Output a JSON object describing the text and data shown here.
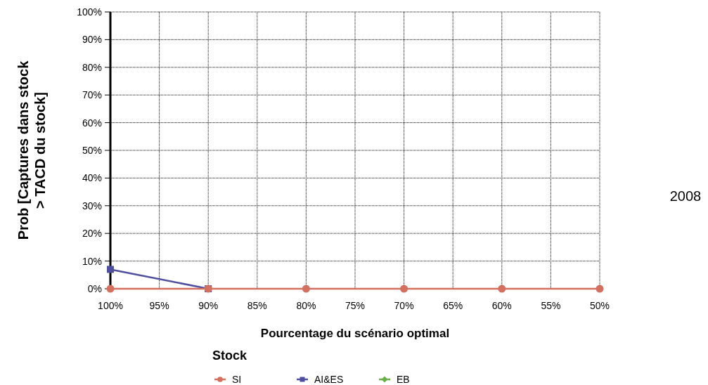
{
  "chart_data": {
    "type": "line",
    "xlabel": "Pourcentage du scénario optimal",
    "ylabel": "Prob [Captures dans stock > TACD du stock]",
    "legend_title": "Stock",
    "annotations": [
      "2008"
    ],
    "x": [
      100,
      90,
      80,
      70,
      60,
      50
    ],
    "xlim": [
      100,
      50
    ],
    "xticks": [
      {
        "value": 100,
        "label": "100%"
      },
      {
        "value": 95,
        "label": "95%"
      },
      {
        "value": 90,
        "label": "90%"
      },
      {
        "value": 85,
        "label": "85%"
      },
      {
        "value": 80,
        "label": "80%"
      },
      {
        "value": 75,
        "label": "75%"
      },
      {
        "value": 70,
        "label": "70%"
      },
      {
        "value": 65,
        "label": "65%"
      },
      {
        "value": 60,
        "label": "60%"
      },
      {
        "value": 55,
        "label": "55%"
      },
      {
        "value": 50,
        "label": "50%"
      }
    ],
    "ylim": [
      0,
      100
    ],
    "yticks": [
      {
        "value": 0,
        "label": "0%"
      },
      {
        "value": 10,
        "label": "10%"
      },
      {
        "value": 20,
        "label": "20%"
      },
      {
        "value": 30,
        "label": "30%"
      },
      {
        "value": 40,
        "label": "40%"
      },
      {
        "value": 50,
        "label": "50%"
      },
      {
        "value": 60,
        "label": "60%"
      },
      {
        "value": 70,
        "label": "70%"
      },
      {
        "value": 80,
        "label": "80%"
      },
      {
        "value": 90,
        "label": "90%"
      },
      {
        "value": 100,
        "label": "100%"
      }
    ],
    "grid": true,
    "legend": "bottom",
    "series": [
      {
        "name": "SI",
        "color": "#d4705f",
        "marker": "circle",
        "values": [
          0,
          0,
          0,
          0,
          0,
          0
        ]
      },
      {
        "name": "AI&ES",
        "color": "#4f4fa0",
        "marker": "square",
        "values": [
          7,
          0,
          null,
          null,
          null,
          null
        ]
      },
      {
        "name": "EB",
        "color": "#6aaf4a",
        "marker": "diamond",
        "values": [
          null,
          null,
          null,
          null,
          null,
          null
        ]
      }
    ]
  }
}
